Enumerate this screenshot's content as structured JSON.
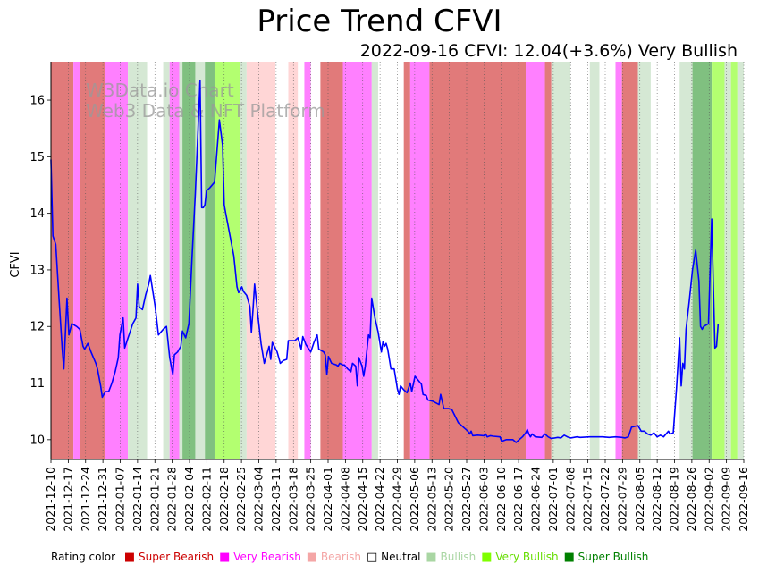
{
  "title": "Price Trend CFVI",
  "subtitle": "2022-09-16 CFVI: 12.04(+3.6%) Very Bullish",
  "watermark": [
    "W3Data.io Chart",
    "Web3 Data & NFT Platform"
  ],
  "legend": {
    "label": "Rating color",
    "items": [
      {
        "name": "Super Bearish",
        "color": "#cc0000",
        "text_color": "#cc0000"
      },
      {
        "name": "Very Bearish",
        "color": "#ff00ff",
        "text_color": "#ff00ff"
      },
      {
        "name": "Bearish",
        "color": "#f4a6a6",
        "text_color": "#f4a6a6"
      },
      {
        "name": "Neutral",
        "color": "#ffffff",
        "text_color": "#000000"
      },
      {
        "name": "Bullish",
        "color": "#a9d6a3",
        "text_color": "#a9d6a3"
      },
      {
        "name": "Very Bullish",
        "color": "#7fff00",
        "text_color": "#66dd00"
      },
      {
        "name": "Super Bullish",
        "color": "#008000",
        "text_color": "#008000"
      }
    ]
  },
  "chart_data": {
    "type": "line",
    "title": "Price Trend CFVI",
    "ylabel": "CFVI",
    "xlabel": "",
    "x_range": [
      "2021-12-10",
      "2022-09-16"
    ],
    "ylim": [
      9.65,
      16.68
    ],
    "yticks": [
      10,
      11,
      12,
      13,
      14,
      15,
      16
    ],
    "xticks": [
      "2021-12-10",
      "2021-12-17",
      "2021-12-24",
      "2021-12-31",
      "2022-01-07",
      "2022-01-14",
      "2022-01-21",
      "2022-01-28",
      "2022-02-04",
      "2022-02-11",
      "2022-02-18",
      "2022-02-25",
      "2022-03-04",
      "2022-03-11",
      "2022-03-18",
      "2022-03-25",
      "2022-04-01",
      "2022-04-08",
      "2022-04-15",
      "2022-04-22",
      "2022-04-29",
      "2022-05-06",
      "2022-05-13",
      "2022-05-20",
      "2022-05-27",
      "2022-06-03",
      "2022-06-10",
      "2022-06-17",
      "2022-06-24",
      "2022-07-01",
      "2022-07-08",
      "2022-07-15",
      "2022-07-22",
      "2022-07-29",
      "2022-08-05",
      "2022-08-12",
      "2022-08-19",
      "2022-08-26",
      "2022-09-02",
      "2022-09-09",
      "2022-09-16"
    ],
    "rating_colors": {
      "SB": "#e17a7a",
      "VB": "#ff80ff",
      "B": "#ffd6d6",
      "N": "#ffffff",
      "BU": "#d5e8d4",
      "VBU": "#b3ff70",
      "SBU": "#80c080"
    },
    "rating_bands": [
      {
        "start": 0,
        "end": 7,
        "rating": "SB"
      },
      {
        "start": 7,
        "end": 9,
        "rating": "VB"
      },
      {
        "start": 9,
        "end": 17,
        "rating": "SB"
      },
      {
        "start": 17,
        "end": 24,
        "rating": "VB"
      },
      {
        "start": 24,
        "end": 30,
        "rating": "BU"
      },
      {
        "start": 30,
        "end": 35,
        "rating": "N"
      },
      {
        "start": 35,
        "end": 37,
        "rating": "BU"
      },
      {
        "start": 37,
        "end": 40,
        "rating": "VB"
      },
      {
        "start": 40,
        "end": 41,
        "rating": "BU"
      },
      {
        "start": 41,
        "end": 45,
        "rating": "SBU"
      },
      {
        "start": 45,
        "end": 48,
        "rating": "BU"
      },
      {
        "start": 48,
        "end": 51,
        "rating": "SBU"
      },
      {
        "start": 51,
        "end": 59,
        "rating": "VBU"
      },
      {
        "start": 59,
        "end": 61,
        "rating": "BU"
      },
      {
        "start": 61,
        "end": 70,
        "rating": "B"
      },
      {
        "start": 70,
        "end": 74,
        "rating": "N"
      },
      {
        "start": 74,
        "end": 77,
        "rating": "B"
      },
      {
        "start": 77,
        "end": 79,
        "rating": "N"
      },
      {
        "start": 79,
        "end": 81,
        "rating": "VB"
      },
      {
        "start": 81,
        "end": 84,
        "rating": "N"
      },
      {
        "start": 84,
        "end": 91,
        "rating": "SB"
      },
      {
        "start": 91,
        "end": 100,
        "rating": "VB"
      },
      {
        "start": 100,
        "end": 102,
        "rating": "BU"
      },
      {
        "start": 102,
        "end": 110,
        "rating": "N"
      },
      {
        "start": 110,
        "end": 112,
        "rating": "SB"
      },
      {
        "start": 112,
        "end": 118,
        "rating": "VB"
      },
      {
        "start": 118,
        "end": 148,
        "rating": "SB"
      },
      {
        "start": 148,
        "end": 154,
        "rating": "VB"
      },
      {
        "start": 154,
        "end": 156,
        "rating": "SB"
      },
      {
        "start": 156,
        "end": 162,
        "rating": "BU"
      },
      {
        "start": 162,
        "end": 168,
        "rating": "N"
      },
      {
        "start": 168,
        "end": 171,
        "rating": "BU"
      },
      {
        "start": 171,
        "end": 176,
        "rating": "N"
      },
      {
        "start": 176,
        "end": 178,
        "rating": "VB"
      },
      {
        "start": 178,
        "end": 183,
        "rating": "SB"
      },
      {
        "start": 183,
        "end": 187,
        "rating": "BU"
      },
      {
        "start": 187,
        "end": 196,
        "rating": "N"
      },
      {
        "start": 196,
        "end": 200,
        "rating": "BU"
      },
      {
        "start": 200,
        "end": 206,
        "rating": "SBU"
      },
      {
        "start": 206,
        "end": 210,
        "rating": "VBU"
      },
      {
        "start": 210,
        "end": 212,
        "rating": "BU"
      },
      {
        "start": 212,
        "end": 214,
        "rating": "VBU"
      },
      {
        "start": 214,
        "end": 216,
        "rating": "BU"
      }
    ],
    "series": [
      {
        "name": "CFVI",
        "color": "#0000ff",
        "points": [
          [
            0,
            14.95
          ],
          [
            0.6,
            13.6
          ],
          [
            1.5,
            13.45
          ],
          [
            2.5,
            12.5
          ],
          [
            3.5,
            11.6
          ],
          [
            4,
            11.25
          ],
          [
            5,
            12.5
          ],
          [
            5.6,
            11.85
          ],
          [
            6.5,
            12.05
          ],
          [
            8,
            12.0
          ],
          [
            9,
            11.95
          ],
          [
            10,
            11.65
          ],
          [
            10.5,
            11.6
          ],
          [
            11.5,
            11.7
          ],
          [
            12.5,
            11.55
          ],
          [
            14,
            11.35
          ],
          [
            14.5,
            11.25
          ],
          [
            15.5,
            10.95
          ],
          [
            16,
            10.75
          ],
          [
            17,
            10.85
          ],
          [
            18,
            10.85
          ],
          [
            19,
            11.0
          ],
          [
            20,
            11.2
          ],
          [
            21,
            11.45
          ],
          [
            21.5,
            11.85
          ],
          [
            22.5,
            12.15
          ],
          [
            23,
            11.62
          ],
          [
            25.5,
            12.05
          ],
          [
            26.5,
            12.15
          ],
          [
            27,
            12.75
          ],
          [
            27.5,
            12.35
          ],
          [
            28.5,
            12.3
          ],
          [
            29.5,
            12.55
          ],
          [
            30.5,
            12.75
          ],
          [
            31,
            12.9
          ],
          [
            32.5,
            12.35
          ],
          [
            33.5,
            11.85
          ],
          [
            35,
            11.95
          ],
          [
            36,
            12.0
          ],
          [
            37,
            11.45
          ],
          [
            38,
            11.15
          ],
          [
            38.5,
            11.5
          ],
          [
            39.5,
            11.55
          ],
          [
            40.5,
            11.65
          ],
          [
            41,
            11.92
          ],
          [
            42,
            11.8
          ],
          [
            43,
            12.05
          ],
          [
            44,
            13.25
          ],
          [
            45,
            14.35
          ],
          [
            46.5,
            16.35
          ],
          [
            47,
            14.1
          ],
          [
            47.5,
            14.1
          ],
          [
            48,
            14.15
          ],
          [
            48.5,
            14.4
          ],
          [
            49.5,
            14.45
          ],
          [
            51,
            14.55
          ],
          [
            52.5,
            15.65
          ],
          [
            53.5,
            15.2
          ],
          [
            54,
            14.15
          ],
          [
            54.5,
            14.0
          ],
          [
            55.5,
            13.7
          ],
          [
            57,
            13.25
          ],
          [
            58,
            12.7
          ],
          [
            58.5,
            12.6
          ],
          [
            59.5,
            12.7
          ],
          [
            60,
            12.62
          ],
          [
            61,
            12.55
          ],
          [
            62,
            12.35
          ],
          [
            62.5,
            11.9
          ],
          [
            63,
            12.3
          ],
          [
            63.5,
            12.75
          ],
          [
            64.5,
            12.2
          ],
          [
            65.5,
            11.7
          ],
          [
            66.5,
            11.35
          ],
          [
            67.5,
            11.55
          ],
          [
            68,
            11.65
          ],
          [
            68.5,
            11.42
          ],
          [
            69,
            11.72
          ],
          [
            70.5,
            11.55
          ],
          [
            71.5,
            11.35
          ],
          [
            72.5,
            11.4
          ],
          [
            73.5,
            11.42
          ],
          [
            74,
            11.75
          ],
          [
            76,
            11.75
          ],
          [
            77,
            11.8
          ],
          [
            78,
            11.6
          ],
          [
            78.5,
            11.82
          ],
          [
            79.5,
            11.68
          ],
          [
            81,
            11.55
          ],
          [
            82,
            11.72
          ],
          [
            83,
            11.85
          ],
          [
            83.5,
            11.6
          ],
          [
            85,
            11.55
          ],
          [
            85.5,
            11.5
          ],
          [
            86,
            11.15
          ],
          [
            86.5,
            11.47
          ],
          [
            87.5,
            11.35
          ],
          [
            89,
            11.32
          ],
          [
            89.5,
            11.3
          ],
          [
            90,
            11.35
          ],
          [
            91,
            11.32
          ],
          [
            91.5,
            11.32
          ],
          [
            92.5,
            11.25
          ],
          [
            93.5,
            11.2
          ],
          [
            94,
            11.35
          ],
          [
            95,
            11.3
          ],
          [
            95.5,
            10.95
          ],
          [
            96,
            11.45
          ],
          [
            97,
            11.3
          ],
          [
            97.5,
            11.12
          ],
          [
            98,
            11.3
          ],
          [
            99,
            11.85
          ],
          [
            99.5,
            11.8
          ],
          [
            100,
            12.5
          ],
          [
            101,
            12.15
          ],
          [
            102,
            11.9
          ],
          [
            103,
            11.55
          ],
          [
            103.5,
            11.73
          ],
          [
            104,
            11.65
          ],
          [
            104.5,
            11.7
          ],
          [
            105,
            11.6
          ],
          [
            106,
            11.25
          ],
          [
            107,
            11.25
          ],
          [
            108,
            10.9
          ],
          [
            108.5,
            10.8
          ],
          [
            109,
            10.95
          ],
          [
            110,
            10.88
          ],
          [
            111,
            10.83
          ],
          [
            112,
            11.0
          ],
          [
            112.5,
            10.85
          ],
          [
            113.5,
            11.12
          ],
          [
            114.5,
            11.05
          ],
          [
            115.5,
            10.98
          ],
          [
            116,
            10.8
          ],
          [
            117,
            10.78
          ],
          [
            117.5,
            10.7
          ],
          [
            119,
            10.68
          ],
          [
            120,
            10.65
          ],
          [
            121,
            10.62
          ],
          [
            121.5,
            10.8
          ],
          [
            122.5,
            10.55
          ],
          [
            124,
            10.55
          ],
          [
            125,
            10.53
          ],
          [
            127,
            10.3
          ],
          [
            128,
            10.25
          ],
          [
            129,
            10.2
          ],
          [
            130,
            10.15
          ],
          [
            130.5,
            10.1
          ],
          [
            131,
            10.15
          ],
          [
            131.5,
            10.07
          ],
          [
            133,
            10.08
          ],
          [
            135,
            10.07
          ],
          [
            135.5,
            10.1
          ],
          [
            136,
            10.05
          ],
          [
            137,
            10.07
          ],
          [
            138,
            10.06
          ],
          [
            140,
            10.05
          ],
          [
            140.5,
            9.97
          ],
          [
            142,
            10.0
          ],
          [
            144,
            10.0
          ],
          [
            145,
            9.95
          ],
          [
            146,
            10.0
          ],
          [
            147,
            10.05
          ],
          [
            148,
            10.12
          ],
          [
            148.5,
            10.18
          ],
          [
            149,
            10.1
          ],
          [
            149.5,
            10.05
          ],
          [
            150,
            10.1
          ],
          [
            151,
            10.05
          ],
          [
            153,
            10.04
          ],
          [
            154,
            10.1
          ],
          [
            155,
            10.05
          ],
          [
            156,
            10.02
          ],
          [
            158,
            10.04
          ],
          [
            159,
            10.03
          ],
          [
            160,
            10.08
          ],
          [
            161,
            10.05
          ],
          [
            162,
            10.03
          ],
          [
            164,
            10.05
          ],
          [
            165,
            10.04
          ],
          [
            168,
            10.05
          ],
          [
            170,
            10.05
          ],
          [
            171,
            10.05
          ],
          [
            172,
            10.05
          ],
          [
            174,
            10.04
          ],
          [
            176,
            10.05
          ],
          [
            178,
            10.04
          ],
          [
            179,
            10.03
          ],
          [
            180,
            10.05
          ],
          [
            181,
            10.22
          ],
          [
            183,
            10.25
          ],
          [
            184,
            10.15
          ],
          [
            185,
            10.15
          ],
          [
            186,
            10.1
          ],
          [
            187,
            10.08
          ],
          [
            188,
            10.12
          ],
          [
            189,
            10.05
          ],
          [
            190,
            10.08
          ],
          [
            191,
            10.05
          ],
          [
            192.5,
            10.15
          ],
          [
            193,
            10.1
          ],
          [
            194,
            10.12
          ],
          [
            195,
            10.9
          ],
          [
            196,
            11.8
          ],
          [
            196.5,
            10.95
          ],
          [
            197,
            11.35
          ],
          [
            197.5,
            11.25
          ],
          [
            198,
            11.95
          ],
          [
            199,
            12.45
          ],
          [
            200,
            13.0
          ],
          [
            201,
            13.35
          ],
          [
            202,
            12.8
          ],
          [
            202.5,
            12.0
          ],
          [
            203,
            11.95
          ],
          [
            203.5,
            12.0
          ],
          [
            205,
            12.05
          ],
          [
            206,
            13.9
          ],
          [
            207,
            11.62
          ],
          [
            207.5,
            11.65
          ],
          [
            208,
            12.04
          ]
        ]
      }
    ]
  }
}
